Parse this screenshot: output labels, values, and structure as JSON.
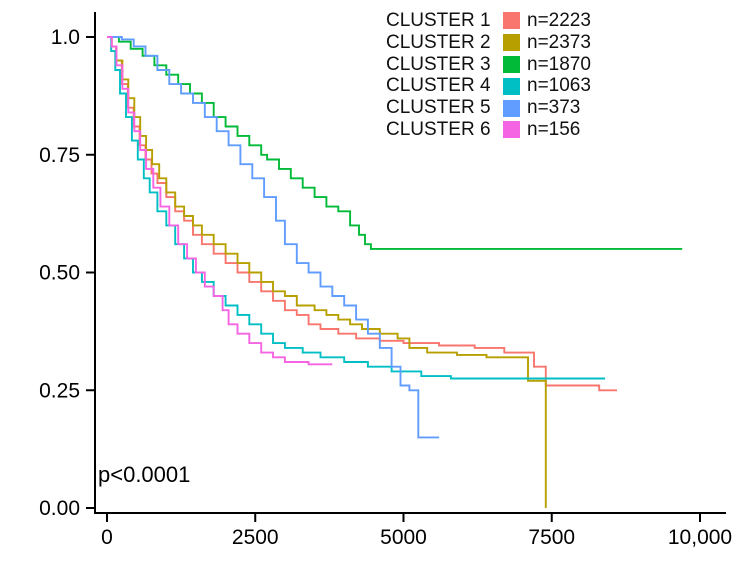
{
  "chart_data": {
    "type": "line",
    "subtype": "kaplan-meier-step",
    "title": "",
    "xlabel": "",
    "ylabel": "",
    "xlim": [
      0,
      10000
    ],
    "ylim": [
      0,
      1.0
    ],
    "grid": false,
    "legend_position": "top-right",
    "annotation": "p<0.0001",
    "axis_color": "#000000",
    "xticks": [
      {
        "v": 0,
        "label": "0"
      },
      {
        "v": 2500,
        "label": "2500"
      },
      {
        "v": 5000,
        "label": "5000"
      },
      {
        "v": 7500,
        "label": "7500"
      },
      {
        "v": 10000,
        "label": "10,000"
      }
    ],
    "yticks": [
      {
        "v": 0.0,
        "label": "0.00"
      },
      {
        "v": 0.25,
        "label": "0.25"
      },
      {
        "v": 0.5,
        "label": "0.50"
      },
      {
        "v": 0.75,
        "label": "0.75"
      },
      {
        "v": 1.0,
        "label": "1.0"
      }
    ],
    "series": [
      {
        "name": "CLUSTER 1",
        "n_label": "n=2223",
        "n": 2223,
        "color": "#F8766D",
        "points": [
          [
            0,
            1.0
          ],
          [
            80,
            0.98
          ],
          [
            150,
            0.95
          ],
          [
            250,
            0.9
          ],
          [
            350,
            0.85
          ],
          [
            450,
            0.81
          ],
          [
            550,
            0.77
          ],
          [
            650,
            0.74
          ],
          [
            750,
            0.71
          ],
          [
            850,
            0.69
          ],
          [
            1000,
            0.66
          ],
          [
            1150,
            0.63
          ],
          [
            1300,
            0.61
          ],
          [
            1450,
            0.58
          ],
          [
            1600,
            0.56
          ],
          [
            1800,
            0.54
          ],
          [
            2000,
            0.52
          ],
          [
            2200,
            0.5
          ],
          [
            2400,
            0.48
          ],
          [
            2600,
            0.46
          ],
          [
            2800,
            0.44
          ],
          [
            3000,
            0.42
          ],
          [
            3200,
            0.41
          ],
          [
            3400,
            0.39
          ],
          [
            3600,
            0.38
          ],
          [
            3900,
            0.37
          ],
          [
            4200,
            0.36
          ],
          [
            4600,
            0.355
          ],
          [
            5000,
            0.35
          ],
          [
            5600,
            0.345
          ],
          [
            6200,
            0.34
          ],
          [
            6700,
            0.33
          ],
          [
            7200,
            0.3
          ],
          [
            7400,
            0.26
          ],
          [
            8000,
            0.26
          ],
          [
            8300,
            0.25
          ],
          [
            8600,
            0.25
          ]
        ]
      },
      {
        "name": "CLUSTER 2",
        "n_label": "n=2373",
        "n": 2373,
        "color": "#B79F00",
        "points": [
          [
            0,
            1.0
          ],
          [
            80,
            0.98
          ],
          [
            160,
            0.95
          ],
          [
            260,
            0.91
          ],
          [
            360,
            0.87
          ],
          [
            460,
            0.83
          ],
          [
            560,
            0.79
          ],
          [
            660,
            0.76
          ],
          [
            760,
            0.73
          ],
          [
            880,
            0.7
          ],
          [
            1000,
            0.67
          ],
          [
            1150,
            0.64
          ],
          [
            1300,
            0.62
          ],
          [
            1450,
            0.6
          ],
          [
            1600,
            0.58
          ],
          [
            1800,
            0.56
          ],
          [
            2000,
            0.54
          ],
          [
            2200,
            0.52
          ],
          [
            2400,
            0.5
          ],
          [
            2600,
            0.48
          ],
          [
            2800,
            0.46
          ],
          [
            3000,
            0.45
          ],
          [
            3200,
            0.43
          ],
          [
            3500,
            0.42
          ],
          [
            3700,
            0.41
          ],
          [
            3900,
            0.4
          ],
          [
            4100,
            0.39
          ],
          [
            4300,
            0.38
          ],
          [
            4600,
            0.37
          ],
          [
            4900,
            0.36
          ],
          [
            5100,
            0.34
          ],
          [
            5400,
            0.33
          ],
          [
            5900,
            0.325
          ],
          [
            6400,
            0.32
          ],
          [
            6900,
            0.32
          ],
          [
            7100,
            0.27
          ],
          [
            7400,
            0.27
          ],
          [
            7400,
            0.0
          ]
        ]
      },
      {
        "name": "CLUSTER 3",
        "n_label": "n=1870",
        "n": 1870,
        "color": "#00BA38",
        "points": [
          [
            0,
            1.0
          ],
          [
            200,
            0.99
          ],
          [
            400,
            0.975
          ],
          [
            600,
            0.96
          ],
          [
            800,
            0.94
          ],
          [
            1000,
            0.92
          ],
          [
            1200,
            0.9
          ],
          [
            1400,
            0.88
          ],
          [
            1600,
            0.86
          ],
          [
            1800,
            0.83
          ],
          [
            2000,
            0.81
          ],
          [
            2200,
            0.79
          ],
          [
            2400,
            0.77
          ],
          [
            2600,
            0.75
          ],
          [
            2700,
            0.74
          ],
          [
            2900,
            0.72
          ],
          [
            3100,
            0.7
          ],
          [
            3300,
            0.68
          ],
          [
            3500,
            0.66
          ],
          [
            3700,
            0.64
          ],
          [
            3900,
            0.63
          ],
          [
            4100,
            0.6
          ],
          [
            4250,
            0.58
          ],
          [
            4350,
            0.56
          ],
          [
            4450,
            0.55
          ],
          [
            9700,
            0.55
          ]
        ]
      },
      {
        "name": "CLUSTER 4",
        "n_label": "n=1063",
        "n": 1063,
        "color": "#00BFC4",
        "points": [
          [
            0,
            1.0
          ],
          [
            70,
            0.97
          ],
          [
            140,
            0.93
          ],
          [
            220,
            0.88
          ],
          [
            320,
            0.83
          ],
          [
            420,
            0.78
          ],
          [
            520,
            0.74
          ],
          [
            620,
            0.7
          ],
          [
            720,
            0.67
          ],
          [
            850,
            0.63
          ],
          [
            1000,
            0.6
          ],
          [
            1150,
            0.56
          ],
          [
            1300,
            0.53
          ],
          [
            1450,
            0.5
          ],
          [
            1600,
            0.48
          ],
          [
            1800,
            0.45
          ],
          [
            2000,
            0.43
          ],
          [
            2200,
            0.41
          ],
          [
            2400,
            0.39
          ],
          [
            2600,
            0.37
          ],
          [
            2800,
            0.35
          ],
          [
            3000,
            0.34
          ],
          [
            3300,
            0.33
          ],
          [
            3600,
            0.32
          ],
          [
            4000,
            0.31
          ],
          [
            4400,
            0.3
          ],
          [
            4800,
            0.29
          ],
          [
            5300,
            0.28
          ],
          [
            5800,
            0.275
          ],
          [
            8400,
            0.275
          ]
        ]
      },
      {
        "name": "CLUSTER 5",
        "n_label": "n=373",
        "n": 373,
        "color": "#619CFF",
        "points": [
          [
            0,
            1.0
          ],
          [
            250,
            0.995
          ],
          [
            450,
            0.98
          ],
          [
            650,
            0.96
          ],
          [
            850,
            0.93
          ],
          [
            1050,
            0.9
          ],
          [
            1250,
            0.88
          ],
          [
            1450,
            0.86
          ],
          [
            1650,
            0.83
          ],
          [
            1850,
            0.8
          ],
          [
            2050,
            0.77
          ],
          [
            2250,
            0.73
          ],
          [
            2450,
            0.7
          ],
          [
            2650,
            0.66
          ],
          [
            2850,
            0.61
          ],
          [
            3000,
            0.56
          ],
          [
            3200,
            0.52
          ],
          [
            3400,
            0.5
          ],
          [
            3600,
            0.47
          ],
          [
            3800,
            0.45
          ],
          [
            4000,
            0.43
          ],
          [
            4200,
            0.4
          ],
          [
            4400,
            0.37
          ],
          [
            4600,
            0.34
          ],
          [
            4800,
            0.3
          ],
          [
            4950,
            0.26
          ],
          [
            5100,
            0.25
          ],
          [
            5250,
            0.15
          ],
          [
            5600,
            0.15
          ]
        ]
      },
      {
        "name": "CLUSTER 6",
        "n_label": "n=156",
        "n": 156,
        "color": "#F564E3",
        "points": [
          [
            0,
            1.0
          ],
          [
            80,
            0.98
          ],
          [
            160,
            0.94
          ],
          [
            260,
            0.89
          ],
          [
            360,
            0.84
          ],
          [
            460,
            0.8
          ],
          [
            560,
            0.76
          ],
          [
            660,
            0.72
          ],
          [
            780,
            0.68
          ],
          [
            900,
            0.64
          ],
          [
            1050,
            0.6
          ],
          [
            1200,
            0.56
          ],
          [
            1350,
            0.53
          ],
          [
            1500,
            0.5
          ],
          [
            1650,
            0.47
          ],
          [
            1800,
            0.45
          ],
          [
            1950,
            0.42
          ],
          [
            2050,
            0.39
          ],
          [
            2200,
            0.37
          ],
          [
            2400,
            0.35
          ],
          [
            2600,
            0.33
          ],
          [
            2800,
            0.32
          ],
          [
            3000,
            0.31
          ],
          [
            3400,
            0.305
          ],
          [
            3800,
            0.305
          ]
        ]
      }
    ]
  }
}
